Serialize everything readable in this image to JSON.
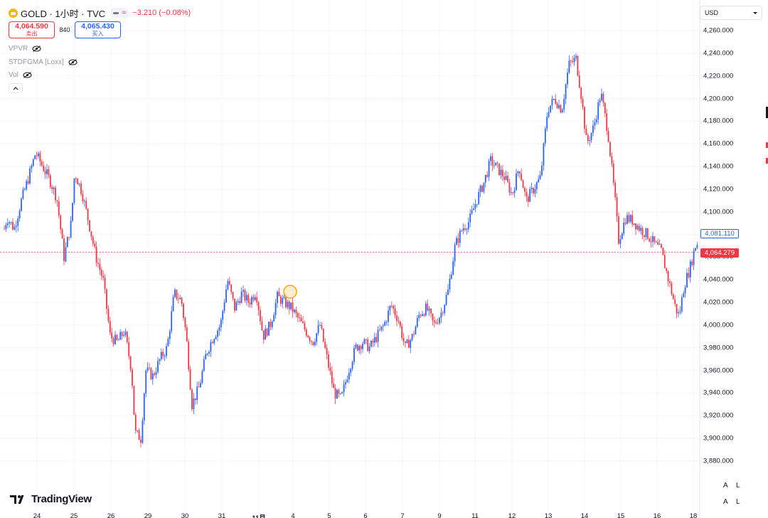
{
  "header": {
    "symbol_title": "GOLD · 1小时 · TVC",
    "change_text": "−3.210 (−0.08%)",
    "status_approx": "≈"
  },
  "trade": {
    "sell_price": "4,064.590",
    "sell_label": "卖出",
    "spread": "840",
    "buy_price": "4,065.430",
    "buy_label": "买入"
  },
  "indicators": [
    {
      "label": "VPVR",
      "icon": "eye-hidden-icon"
    },
    {
      "label": "STDFGMA [Loxx]",
      "icon": "eye-hidden-icon"
    },
    {
      "label": "Vol",
      "icon": "eye-hidden-icon"
    }
  ],
  "currency": "USD",
  "price_axis": {
    "ticks": [
      "4,260.000",
      "4,240.000",
      "4,220.000",
      "4,200.000",
      "4,180.000",
      "4,160.000",
      "4,140.000",
      "4,120.000",
      "4,100.000",
      "4,080.000",
      "4,060.000",
      "4,040.000",
      "4,020.000",
      "4,000.000",
      "3,980.000",
      "3,960.000",
      "3,940.000",
      "3,920.000",
      "3,900.000",
      "3,880.000"
    ],
    "tag_high": "4,081.110",
    "tag_last": "4,064.279"
  },
  "x_axis": {
    "labels": [
      "24",
      "25",
      "26",
      "29",
      "30",
      "31",
      "11月",
      "4",
      "5",
      "6",
      "7",
      "9",
      "11",
      "12",
      "13",
      "14",
      "15",
      "16",
      "18"
    ],
    "bold_label": "11月"
  },
  "branding": {
    "logo_text": "TradingView"
  },
  "scale_buttons": {
    "auto": "A",
    "log": "L"
  },
  "colors": {
    "up": "#2962ff",
    "down": "#f23645",
    "last_price_line": "#f23645",
    "marker": "#f7a600"
  },
  "chart_data": {
    "type": "candlestick",
    "symbol": "GOLD",
    "interval": "1小时",
    "ylim": [
      3870,
      4270
    ],
    "last_price": 4064.279,
    "high_marker": 4081.11,
    "x_ticks": [
      "24",
      "25",
      "26",
      "29",
      "30",
      "31",
      "11月",
      "4",
      "5",
      "6",
      "7",
      "9",
      "11",
      "12",
      "13",
      "14",
      "15",
      "16",
      "18"
    ],
    "price_path": [
      [
        0,
        4070
      ],
      [
        10,
        4095
      ],
      [
        20,
        4085
      ],
      [
        30,
        4110
      ],
      [
        40,
        4130
      ],
      [
        50,
        4152
      ],
      [
        60,
        4140
      ],
      [
        70,
        4128
      ],
      [
        80,
        4112
      ],
      [
        90,
        4060
      ],
      [
        100,
        4090
      ],
      [
        105,
        4135
      ],
      [
        115,
        4118
      ],
      [
        125,
        4090
      ],
      [
        135,
        4060
      ],
      [
        145,
        4040
      ],
      [
        155,
        3990
      ],
      [
        165,
        3985
      ],
      [
        175,
        3995
      ],
      [
        185,
        3960
      ],
      [
        190,
        3905
      ],
      [
        198,
        3900
      ],
      [
        205,
        3960
      ],
      [
        215,
        3955
      ],
      [
        225,
        3970
      ],
      [
        235,
        3980
      ],
      [
        245,
        4028
      ],
      [
        255,
        4022
      ],
      [
        262,
        3990
      ],
      [
        270,
        3930
      ],
      [
        280,
        3945
      ],
      [
        290,
        3975
      ],
      [
        300,
        3990
      ],
      [
        310,
        4000
      ],
      [
        320,
        4040
      ],
      [
        330,
        4015
      ],
      [
        340,
        4028
      ],
      [
        350,
        4020
      ],
      [
        360,
        4030
      ],
      [
        370,
        3990
      ],
      [
        380,
        4000
      ],
      [
        390,
        4025
      ],
      [
        400,
        4020
      ],
      [
        410,
        4015
      ],
      [
        420,
        4005
      ],
      [
        430,
        3995
      ],
      [
        440,
        3985
      ],
      [
        450,
        4000
      ],
      [
        460,
        3970
      ],
      [
        470,
        3940
      ],
      [
        480,
        3935
      ],
      [
        490,
        3960
      ],
      [
        500,
        3980
      ],
      [
        510,
        3985
      ],
      [
        520,
        3980
      ],
      [
        530,
        3990
      ],
      [
        540,
        4000
      ],
      [
        550,
        4018
      ],
      [
        560,
        4005
      ],
      [
        570,
        3980
      ],
      [
        580,
        3990
      ],
      [
        590,
        4010
      ],
      [
        600,
        4015
      ],
      [
        610,
        4000
      ],
      [
        620,
        4010
      ],
      [
        630,
        4030
      ],
      [
        640,
        4070
      ],
      [
        650,
        4085
      ],
      [
        660,
        4092
      ],
      [
        670,
        4110
      ],
      [
        680,
        4125
      ],
      [
        690,
        4145
      ],
      [
        700,
        4138
      ],
      [
        710,
        4130
      ],
      [
        720,
        4115
      ],
      [
        730,
        4140
      ],
      [
        740,
        4110
      ],
      [
        750,
        4120
      ],
      [
        760,
        4130
      ],
      [
        770,
        4190
      ],
      [
        780,
        4200
      ],
      [
        790,
        4190
      ],
      [
        800,
        4230
      ],
      [
        810,
        4235
      ],
      [
        818,
        4200
      ],
      [
        825,
        4160
      ],
      [
        835,
        4175
      ],
      [
        845,
        4205
      ],
      [
        855,
        4170
      ],
      [
        865,
        4110
      ],
      [
        870,
        4075
      ],
      [
        880,
        4095
      ],
      [
        890,
        4092
      ],
      [
        900,
        4085
      ],
      [
        910,
        4080
      ],
      [
        920,
        4072
      ],
      [
        930,
        4065
      ],
      [
        940,
        4040
      ],
      [
        950,
        4015
      ],
      [
        955,
        4008
      ],
      [
        962,
        4035
      ],
      [
        970,
        4050
      ],
      [
        978,
        4070
      ],
      [
        984,
        4075
      ]
    ]
  }
}
